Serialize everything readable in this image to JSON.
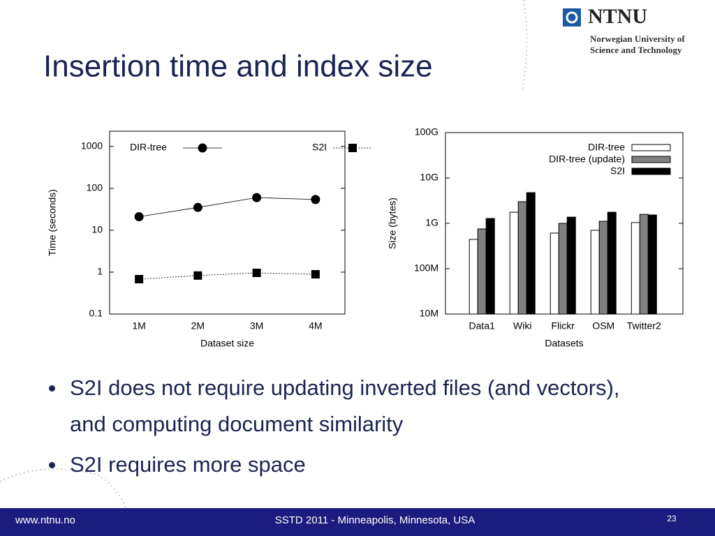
{
  "header": {
    "title": "Insertion time and index size",
    "logo": {
      "name": "NTNU",
      "line1": "Norwegian University of",
      "line2": "Science and Technology"
    }
  },
  "chart_data": [
    {
      "type": "line",
      "xlabel": "Dataset size",
      "ylabel": "Time (seconds)",
      "categories": [
        "1M",
        "2M",
        "3M",
        "4M"
      ],
      "log_y": true,
      "ylim": [
        0.1,
        2300
      ],
      "yticks": [
        1000,
        100,
        10,
        1,
        0.1
      ],
      "legend": "top-left",
      "series": [
        {
          "name": "DIR-tree",
          "color": "#000000",
          "marker": "circle",
          "line_style": "solid",
          "values": [
            21,
            35,
            60,
            54
          ]
        },
        {
          "name": "S2I",
          "color": "#000000",
          "marker": "square",
          "line_style": "dashed",
          "values": [
            0.68,
            0.83,
            0.96,
            0.89
          ]
        }
      ]
    },
    {
      "type": "bar",
      "xlabel": "Datasets",
      "ylabel": "Size (bytes)",
      "categories": [
        "Data1",
        "Wiki",
        "Flickr",
        "OSM",
        "Twitter2"
      ],
      "log_y": true,
      "ylim": [
        10000000,
        100000000000
      ],
      "yticks": [
        {
          "value": 100000000000,
          "label": "100G"
        },
        {
          "value": 10000000000,
          "label": "10G"
        },
        {
          "value": 1000000000,
          "label": "1G"
        },
        {
          "value": 100000000,
          "label": "100M"
        },
        {
          "value": 10000000,
          "label": "10M"
        }
      ],
      "legend": "top-right",
      "series": [
        {
          "name": "DIR-tree",
          "color": "#ffffff",
          "values": [
            443000000,
            1760000000,
            609000000,
            701000000,
            1040000000
          ]
        },
        {
          "name": "DIR-tree (update)",
          "color": "#808080",
          "values": [
            754000000,
            3000000000,
            1000000000,
            1110000000,
            1580000000
          ]
        },
        {
          "name": "S2I",
          "color": "#000000",
          "values": [
            1280000000,
            4750000000,
            1370000000,
            1760000000,
            1530000000
          ]
        }
      ]
    }
  ],
  "bullets": [
    "S2I does not require updating inverted files (and vectors), and computing document similarity",
    "S2I requires more space"
  ],
  "footer": {
    "url": "www.ntnu.no",
    "event": "SSTD 2011 - Minneapolis, Minnesota, USA",
    "page": "23"
  }
}
